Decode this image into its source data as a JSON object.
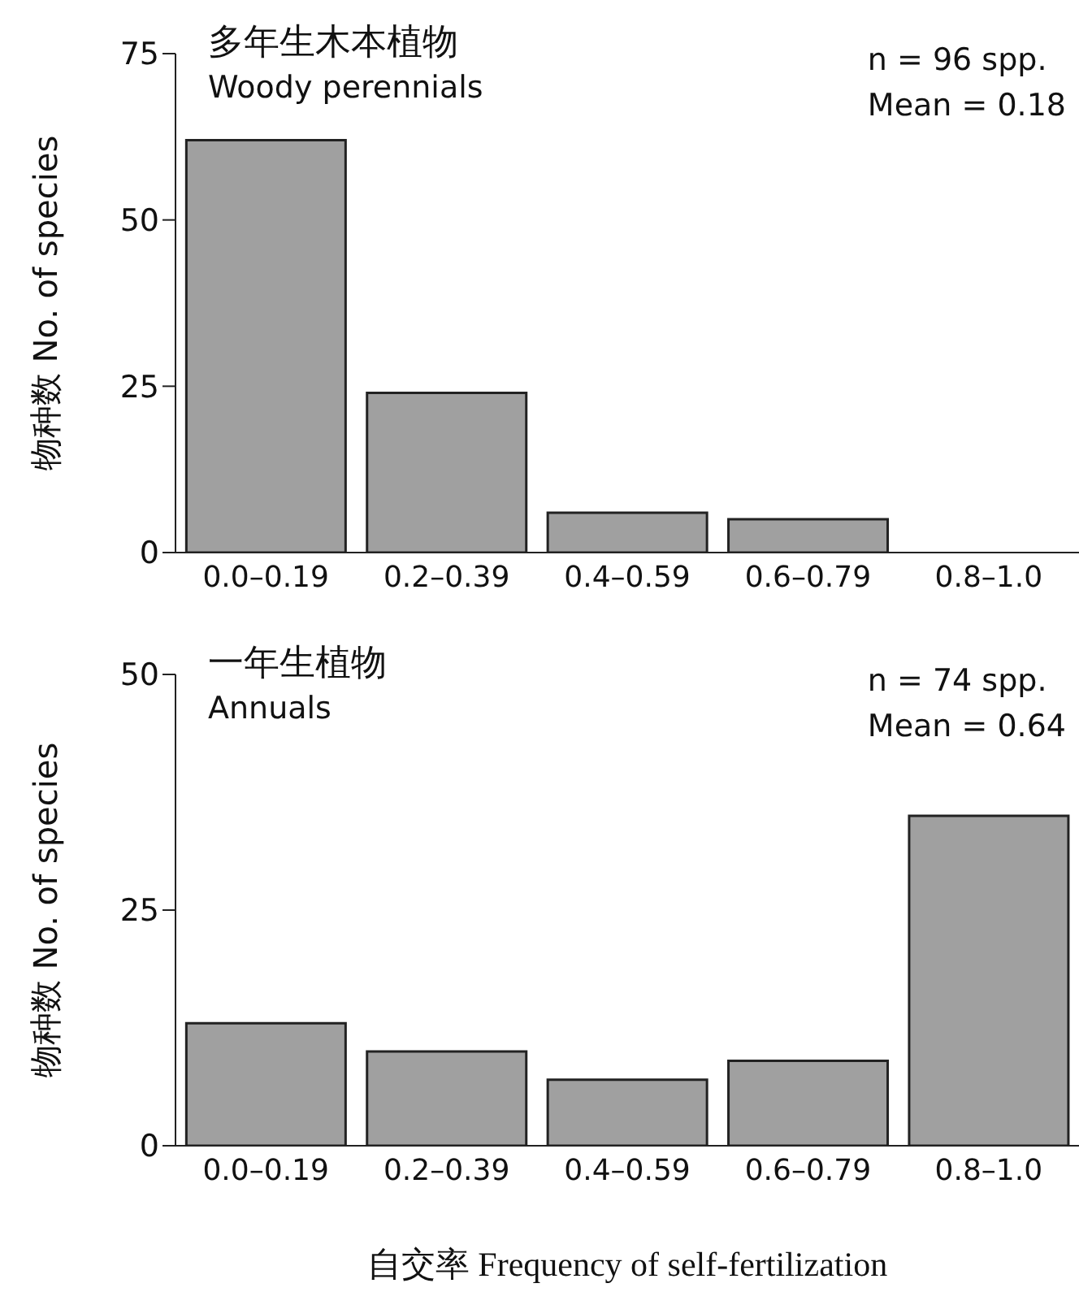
{
  "chart_data": [
    {
      "type": "bar",
      "title": "多年生木本植物",
      "subtitle": "Woody perennials",
      "ylabel": "物种数 No. of species",
      "categories": [
        "0.0–0.19",
        "0.2–0.39",
        "0.4–0.59",
        "0.6–0.79",
        "0.8–1.0"
      ],
      "values": [
        62,
        24,
        6,
        5,
        0
      ],
      "color": "#a0a0a0",
      "ylim": [
        0,
        75
      ],
      "yticks": [
        0,
        25,
        50,
        75
      ],
      "annotations": [
        "n = 96 spp.",
        "Mean = 0.18"
      ]
    },
    {
      "type": "bar",
      "title": "一年生植物",
      "subtitle": "Annuals",
      "ylabel": "物种数 No. of species",
      "xlabel": "自交率 Frequency of self-fertilization",
      "categories": [
        "0.0–0.19",
        "0.2–0.39",
        "0.4–0.59",
        "0.6–0.79",
        "0.8–1.0"
      ],
      "values": [
        13,
        10,
        7,
        9,
        35
      ],
      "color": "#a0a0a0",
      "ylim": [
        0,
        50
      ],
      "yticks": [
        0,
        25,
        50
      ],
      "annotations": [
        "n = 74 spp.",
        "Mean = 0.64"
      ]
    }
  ]
}
